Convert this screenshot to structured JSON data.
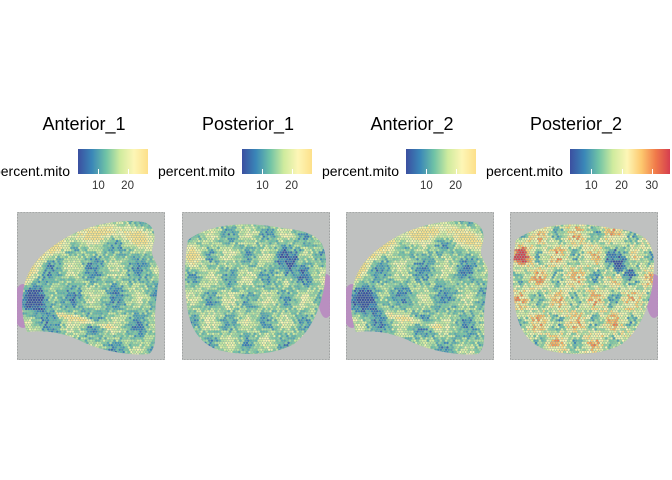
{
  "chart_data": [
    {
      "type": "heatmap",
      "title": "Anterior_1",
      "legend_title": "percent.mito",
      "ticks": [
        "10",
        "20"
      ],
      "tick_values": [
        10,
        20
      ],
      "color_range": [
        3,
        27
      ],
      "colorscale": [
        "#3b4fa0",
        "#3a87b8",
        "#6fc2a6",
        "#cfeb9e",
        "#fdf6b6",
        "#fde08a"
      ],
      "tissue": "anterior"
    },
    {
      "type": "heatmap",
      "title": "Posterior_1",
      "legend_title": "percent.mito",
      "ticks": [
        "10",
        "20"
      ],
      "tick_values": [
        10,
        20
      ],
      "color_range": [
        3,
        27
      ],
      "colorscale": [
        "#3b4fa0",
        "#3a87b8",
        "#6fc2a6",
        "#cfeb9e",
        "#fdf6b6",
        "#fde08a"
      ],
      "tissue": "posterior"
    },
    {
      "type": "heatmap",
      "title": "Anterior_2",
      "legend_title": "percent.mito",
      "ticks": [
        "10",
        "20"
      ],
      "tick_values": [
        10,
        20
      ],
      "color_range": [
        3,
        27
      ],
      "colorscale": [
        "#3b4fa0",
        "#3a87b8",
        "#6fc2a6",
        "#cfeb9e",
        "#fdf6b6",
        "#fde08a"
      ],
      "tissue": "anterior"
    },
    {
      "type": "heatmap",
      "title": "Posterior_2",
      "legend_title": "percent.mito",
      "ticks": [
        "10",
        "20",
        "30"
      ],
      "tick_values": [
        10,
        20,
        30
      ],
      "color_range": [
        3,
        36
      ],
      "colorscale": [
        "#3b4fa0",
        "#3a87b8",
        "#6fc2a6",
        "#cfeb9e",
        "#fdf6b6",
        "#fdc86e",
        "#f07a4a",
        "#d53e4f"
      ],
      "tissue": "posterior"
    }
  ]
}
